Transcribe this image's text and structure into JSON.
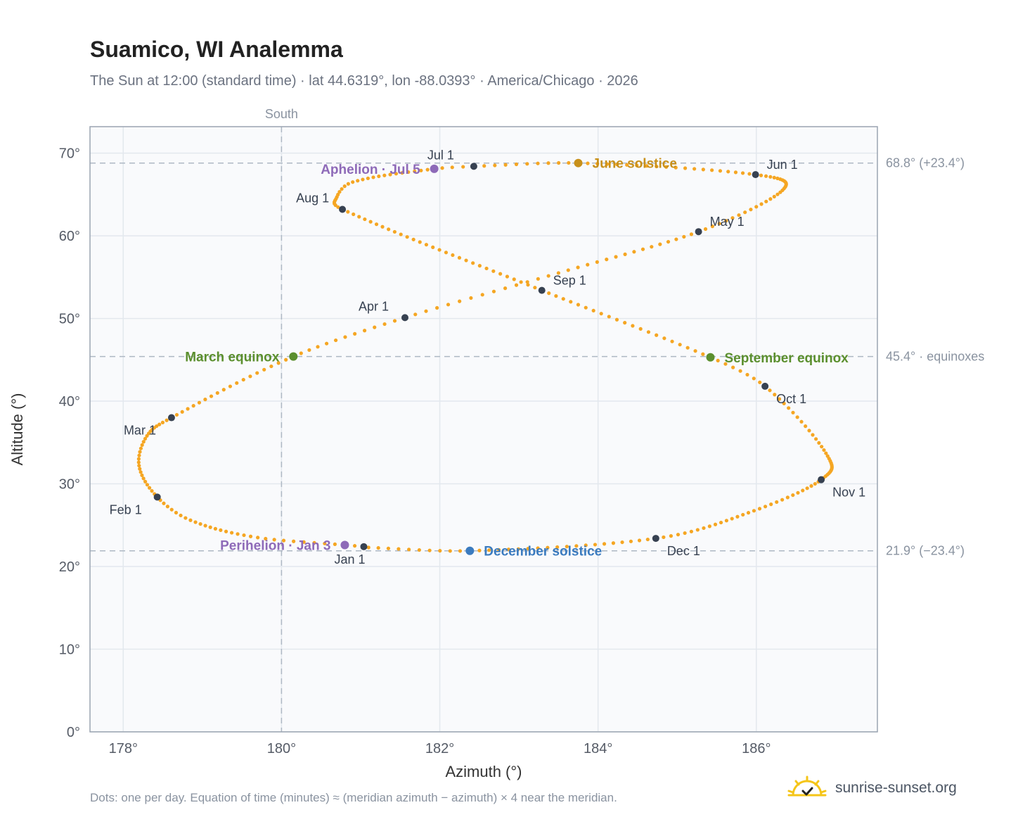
{
  "header": {
    "title": "Suamico, WI Analemma",
    "subtitle": "The Sun at 12:00 (standard time) · lat 44.6319°, lon -88.0393° · America/Chicago · 2026"
  },
  "footer": {
    "note": "Dots: one per day. Equation of time (minutes) ≈ (meridian azimuth − azimuth) × 4 near the meridian.",
    "brand": "sunrise-sunset.org"
  },
  "colors": {
    "dots": "#f5a623",
    "month_marker": "#374151",
    "solstice_june": "#c8901a",
    "solstice_december": "#3b7bbf",
    "equinox": "#5b8f2e",
    "apsis": "#8e6ab8",
    "brand_sun": "#f5c518"
  },
  "chart_data": {
    "type": "scatter",
    "title": "Suamico, WI Analemma",
    "xlabel": "Azimuth (°)",
    "ylabel": "Altitude (°)",
    "xlim": [
      177.58,
      187.53
    ],
    "ylim": [
      0,
      73.2
    ],
    "xticks": [
      178,
      180,
      182,
      184,
      186
    ],
    "yticks": [
      0,
      10,
      20,
      30,
      40,
      50,
      60,
      70
    ],
    "grid": true,
    "meridian": {
      "x": 180,
      "label": "South"
    },
    "reference_lines": [
      {
        "y": 68.8,
        "label": "68.8° (+23.4°)"
      },
      {
        "y": 45.4,
        "label": "45.4° · equinoxes"
      },
      {
        "y": 21.9,
        "label": "21.9° (−23.4°)"
      }
    ],
    "series": [
      {
        "keypoints": [
          {
            "doy": 1,
            "az": 181.04,
            "alt": 22.4
          },
          {
            "doy": 3,
            "az": 180.8,
            "alt": 22.6
          },
          {
            "doy": 12,
            "az": 179.7,
            "alt": 23.5
          },
          {
            "doy": 24,
            "az": 178.85,
            "alt": 25.6
          },
          {
            "doy": 32,
            "az": 178.43,
            "alt": 28.4
          },
          {
            "doy": 42,
            "az": 178.2,
            "alt": 32.2
          },
          {
            "doy": 51,
            "az": 178.3,
            "alt": 35.8
          },
          {
            "doy": 60,
            "az": 178.61,
            "alt": 38.0
          },
          {
            "doy": 79,
            "az": 180.15,
            "alt": 45.4
          },
          {
            "doy": 91,
            "az": 181.56,
            "alt": 50.1
          },
          {
            "doy": 105,
            "az": 183.5,
            "alt": 55.5
          },
          {
            "doy": 121,
            "az": 185.27,
            "alt": 60.5
          },
          {
            "doy": 137,
            "az": 186.33,
            "alt": 65.5
          },
          {
            "doy": 152,
            "az": 185.99,
            "alt": 67.4
          },
          {
            "doy": 172,
            "az": 183.75,
            "alt": 68.8
          },
          {
            "doy": 182,
            "az": 182.43,
            "alt": 68.4
          },
          {
            "doy": 186,
            "az": 181.93,
            "alt": 68.1
          },
          {
            "doy": 200,
            "az": 180.9,
            "alt": 66.5
          },
          {
            "doy": 206,
            "az": 180.7,
            "alt": 64.7
          },
          {
            "doy": 213,
            "az": 180.77,
            "alt": 63.2
          },
          {
            "doy": 244,
            "az": 183.29,
            "alt": 53.4
          },
          {
            "doy": 266,
            "az": 185.42,
            "alt": 45.3
          },
          {
            "doy": 274,
            "az": 186.11,
            "alt": 41.8
          },
          {
            "doy": 290,
            "az": 186.88,
            "alt": 33.7
          },
          {
            "doy": 305,
            "az": 186.82,
            "alt": 30.5
          },
          {
            "doy": 320,
            "az": 185.9,
            "alt": 26.5
          },
          {
            "doy": 335,
            "az": 184.73,
            "alt": 23.4
          },
          {
            "doy": 355,
            "az": 182.38,
            "alt": 21.9
          },
          {
            "doy": 365,
            "az": 181.1,
            "alt": 22.3
          }
        ]
      }
    ],
    "month_markers": [
      {
        "label": "Jan 1",
        "az": 181.04,
        "alt": 22.4,
        "pos": "below"
      },
      {
        "label": "Feb 1",
        "az": 178.43,
        "alt": 28.4,
        "pos": "below-left"
      },
      {
        "label": "Mar 1",
        "az": 178.61,
        "alt": 38.0,
        "pos": "below-left"
      },
      {
        "label": "Apr 1",
        "az": 181.56,
        "alt": 50.1,
        "pos": "above-left"
      },
      {
        "label": "May 1",
        "az": 185.27,
        "alt": 60.5,
        "pos": "above-right"
      },
      {
        "label": "Jun 1",
        "az": 185.99,
        "alt": 67.4,
        "pos": "above-right"
      },
      {
        "label": "Jul 1",
        "az": 182.43,
        "alt": 68.4,
        "pos": "above-left"
      },
      {
        "label": "Aug 1",
        "az": 180.77,
        "alt": 63.2,
        "pos": "above-left"
      },
      {
        "label": "Sep 1",
        "az": 183.29,
        "alt": 53.4,
        "pos": "above-right"
      },
      {
        "label": "Oct 1",
        "az": 186.11,
        "alt": 41.8,
        "pos": "below-right"
      },
      {
        "label": "Nov 1",
        "az": 186.82,
        "alt": 30.5,
        "pos": "below-right"
      },
      {
        "label": "Dec 1",
        "az": 184.73,
        "alt": 23.4,
        "pos": "below-right"
      }
    ],
    "events": [
      {
        "label": "June solstice",
        "az": 183.75,
        "alt": 68.8,
        "kind": "solstice_june",
        "side": "right"
      },
      {
        "label": "December solstice",
        "az": 182.38,
        "alt": 21.9,
        "kind": "solstice_december",
        "side": "right"
      },
      {
        "label": "March equinox",
        "az": 180.15,
        "alt": 45.4,
        "kind": "equinox",
        "side": "left"
      },
      {
        "label": "September equinox",
        "az": 185.42,
        "alt": 45.3,
        "kind": "equinox",
        "side": "right"
      },
      {
        "label": "Aphelion · Jul 5",
        "az": 181.93,
        "alt": 68.1,
        "kind": "apsis",
        "side": "left"
      },
      {
        "label": "Perihelion · Jan 3",
        "az": 180.8,
        "alt": 22.6,
        "kind": "apsis",
        "side": "left"
      }
    ]
  }
}
